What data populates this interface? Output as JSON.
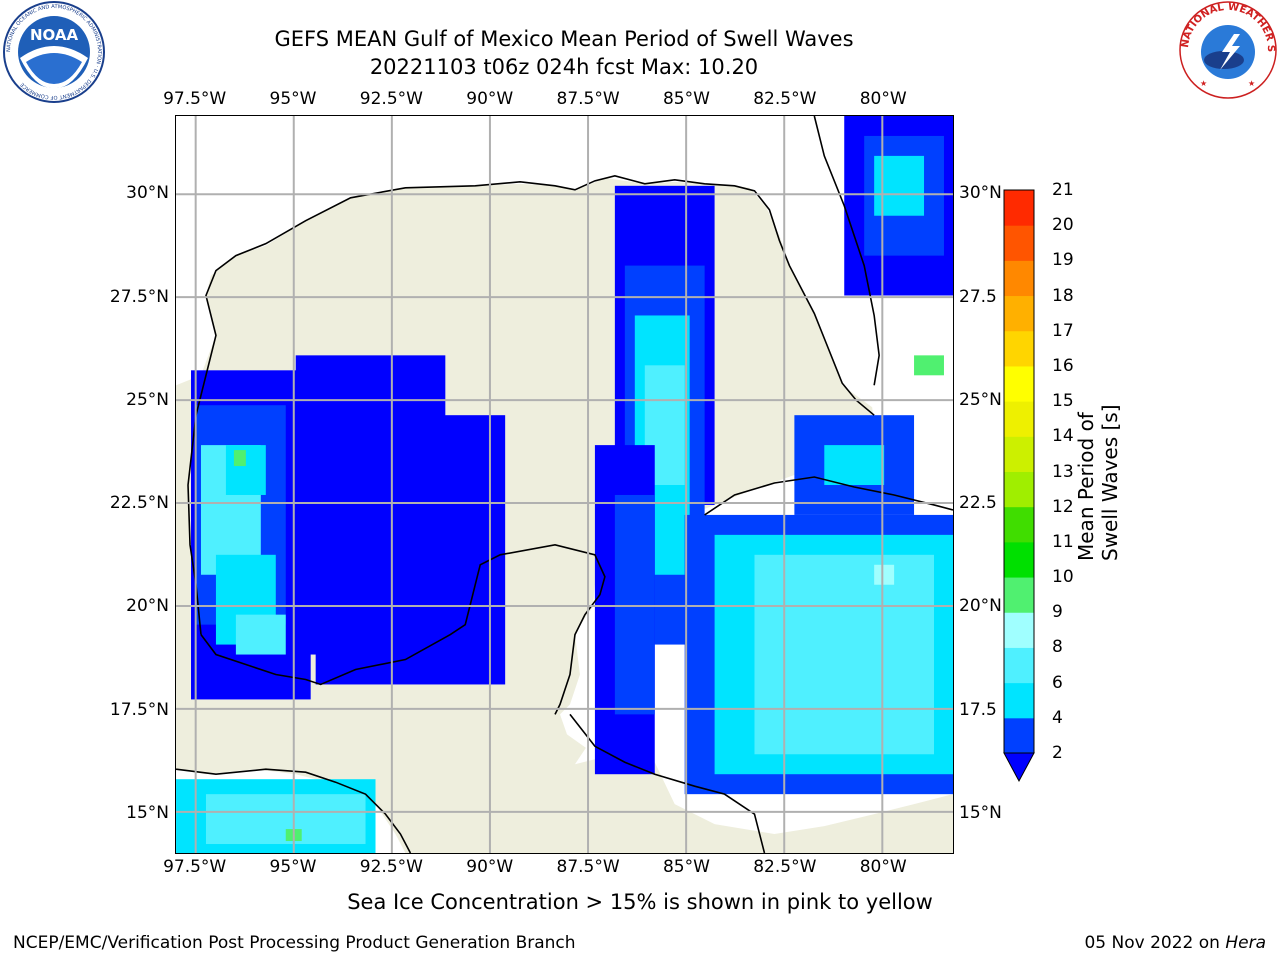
{
  "title": {
    "line1": "GEFS MEAN Gulf of Mexico Mean Period of Swell Waves",
    "line2": "20221103 t06z 024h fcst   Max: 10.20"
  },
  "map": {
    "lon_labels": [
      "97.5°W",
      "95°W",
      "92.5°W",
      "90°W",
      "87.5°W",
      "85°W",
      "82.5°W",
      "80°W"
    ],
    "lat_labels_left": [
      "30°N",
      "27.5°N",
      "25°N",
      "22.5°N",
      "20°N",
      "17.5°N",
      "15°N"
    ],
    "lat_labels_right": [
      "30°N",
      "27.5",
      "25°N",
      "22.5",
      "20°N",
      "17.5",
      "15°N"
    ],
    "lon_range": [
      -98,
      -78.2
    ],
    "lat_range": [
      14,
      31.9
    ],
    "land_color": "#eeeedd",
    "ocean_missing_color": "#ffffff",
    "grid_color": "#b0b0b0"
  },
  "colorbar": {
    "title": "Mean Period of Swell Waves [s]",
    "levels": [
      "2",
      "4",
      "6",
      "8",
      "9",
      "10",
      "11",
      "12",
      "13",
      "14",
      "15",
      "16",
      "17",
      "18",
      "19",
      "20",
      "21"
    ],
    "colors": [
      "#0040ff",
      "#00e4ff",
      "#4ff0ff",
      "#a0ffff",
      "#50f070",
      "#00e000",
      "#40dd00",
      "#a0ee00",
      "#ccf000",
      "#eef000",
      "#ffff00",
      "#ffd500",
      "#ffb000",
      "#ff8800",
      "#ff5500",
      "#ff2a00"
    ],
    "under_color": "#0000ff"
  },
  "note": "Sea Ice Concentration > 15% is shown in pink to yellow",
  "footer": {
    "left": "NCEP/EMC/Verification Post Processing Product Generation Branch",
    "date": "05 Nov 2022 on ",
    "machine": "Hera"
  },
  "logos": {
    "noaa_text": "NOAA",
    "noaa_ring": "NATIONAL OCEANIC AND ATMOSPHERIC ADMINISTRATION · U.S. DEPARTMENT OF COMMERCE",
    "nws_ring": "NATIONAL WEATHER SERVICE"
  }
}
